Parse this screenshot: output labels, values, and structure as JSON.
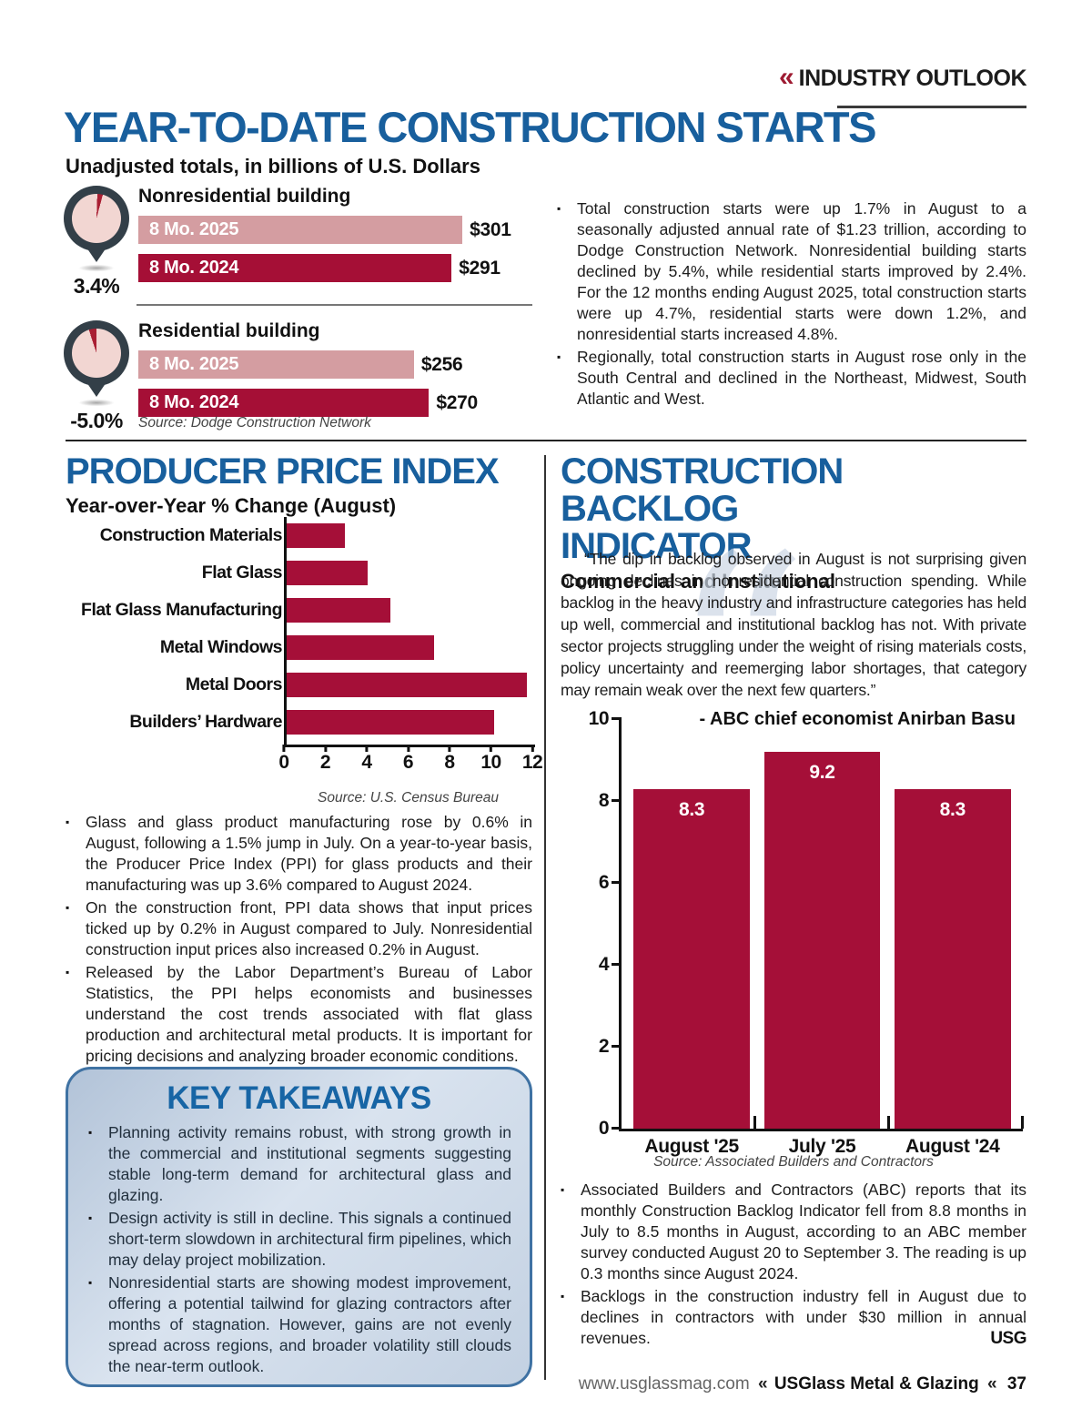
{
  "colors": {
    "heading_blue": "#185f9d",
    "takeaways_blue": "#1765a5",
    "crimson_bar": "#a50f38",
    "dark_bar": "#a50f36",
    "light_pink_bar": "#d49da1",
    "gauge_pin": "#333f48",
    "gauge_dial": "#f2d6d2",
    "gauge_wedge": "#a91f33",
    "kicker_red": "#9e1b32",
    "box_border": "#3f72a3"
  },
  "kicker": {
    "chevrons": "«",
    "label": "INDUSTRY OUTLOOK"
  },
  "page": {
    "title": "YEAR-TO-DATE CONSTRUCTION STARTS",
    "subtitle": "Unadjusted totals, in billions of U.S. Dollars"
  },
  "starts": {
    "bullets": [
      "Total construction starts were up 1.7% in August to a seasonally adjusted annual rate of $1.23 trillion, according to Dodge Construction Network. Nonresidential building starts declined by 5.4%, while residential starts improved by 2.4%. For the 12 months ending August 2025, total construction starts were up 4.7%, residential starts were down 1.2%, and nonresidential starts increased 4.8%.",
      "Regionally, total construction starts in August rose only in the South Central and declined in the Northeast, Midwest, South Atlantic and West."
    ]
  },
  "ppi": {
    "title": "PRODUCER PRICE INDEX",
    "subtitle": "Year-over-Year % Change (August)",
    "bullets": [
      "Glass and glass product manufacturing rose by 0.6% in August, following a 1.5% jump in July. On a year-to-year basis, the Producer Price Index (PPI) for glass products and their manufacturing was up 3.6% compared to August 2024.",
      "On the construction front, PPI data shows that input prices ticked up by 0.2% in August compared to July. Nonresidential construction input prices also increased 0.2% in August.",
      "Released by the Labor Department’s Bureau of Labor Statistics, the PPI helps economists and businesses understand the cost trends associated with flat glass production and architectural metal products. It is important for pricing decisions and analyzing broader economic conditions."
    ]
  },
  "takeaways": {
    "title": "KEY TAKEAWAYS",
    "bullets": [
      "Planning activity remains robust, with strong growth in the commercial and institutional segments suggesting stable long-term demand for architectural glass and glazing.",
      "Design activity is still in decline. This signals a continued short-term slowdown in architectural firm pipelines, which may delay project mobilization.",
      "Nonresidential starts are showing modest improvement, offering a potential tailwind for glazing contractors after months of stagnation. However, gains are not evenly spread across regions, and broader volatility still clouds the near-term outlook."
    ]
  },
  "backlog": {
    "title_lines": [
      "CONSTRUCTION BACKLOG",
      "INDICATOR"
    ],
    "subtitle": "Commercial and Institutional",
    "quote": "“The dip in backlog observed in August is not surprising given ongoing declines in nonresidential construction spending. While backlog in the heavy industry and infrastructure categories has held up well, commercial and institutional backlog has not. With private sector projects struggling under the weight of rising materials costs, policy uncertainty and reemerging labor shortages, that category may remain weak over the next few quarters.”",
    "attribution": "- ABC chief economist Anirban Basu",
    "watermark": "“",
    "bullets": [
      "Associated Builders and Contractors (ABC) reports that its monthly Construction Backlog Indicator fell from 8.8 months in July to 8.5 months in August, according to an ABC member survey conducted August 20 to September 3. The reading is up 0.3 months since August 2024.",
      "Backlogs in the construction industry fell in August due to declines in contractors with under $30 million in annual revenues."
    ],
    "endmark": "USG"
  },
  "footer": {
    "url": "www.usglassmag.com",
    "chevron": "«",
    "magazine": "USGlass Metal & Glazing",
    "page_number": "37"
  },
  "chart_data": [
    {
      "id": "construction-starts",
      "type": "bar",
      "title": "YEAR-TO-DATE CONSTRUCTION STARTS",
      "units": "billions of U.S. Dollars",
      "groups": [
        {
          "category": "Nonresidential building",
          "change_pct": "3.4%",
          "series": [
            {
              "name": "8 Mo. 2025",
              "value": 301,
              "label": "$301"
            },
            {
              "name": "8 Mo. 2024",
              "value": 291,
              "label": "$291"
            }
          ]
        },
        {
          "category": "Residential building",
          "change_pct": "-5.0%",
          "series": [
            {
              "name": "8 Mo. 2025",
              "value": 256,
              "label": "$256"
            },
            {
              "name": "8 Mo. 2024",
              "value": 270,
              "label": "$270"
            }
          ]
        }
      ],
      "source": "Source: Dodge Construction Network"
    },
    {
      "id": "ppi",
      "type": "bar",
      "orientation": "horizontal",
      "title": "PRODUCER PRICE INDEX",
      "subtitle": "Year-over-Year % Change (August)",
      "categories": [
        "Construction Materials",
        "Flat Glass",
        "Flat Glass Manufacturing",
        "Metal Windows",
        "Metal Doors",
        "Builders’ Hardware"
      ],
      "values": [
        2.8,
        3.9,
        5.0,
        7.1,
        11.6,
        10.0
      ],
      "xlim": [
        0,
        12
      ],
      "xticks": [
        0,
        2,
        4,
        6,
        8,
        10,
        12
      ],
      "source": "Source: U.S. Census Bureau"
    },
    {
      "id": "backlog",
      "type": "bar",
      "title": "CONSTRUCTION BACKLOG INDICATOR",
      "subtitle": "Commercial and Institutional",
      "categories": [
        "August '25",
        "July '25",
        "August '24"
      ],
      "values": [
        8.3,
        9.2,
        8.3
      ],
      "ylim": [
        0,
        10
      ],
      "yticks": [
        0,
        2,
        4,
        6,
        8,
        10
      ],
      "source": "Source: Associated Builders and Contractors"
    }
  ]
}
